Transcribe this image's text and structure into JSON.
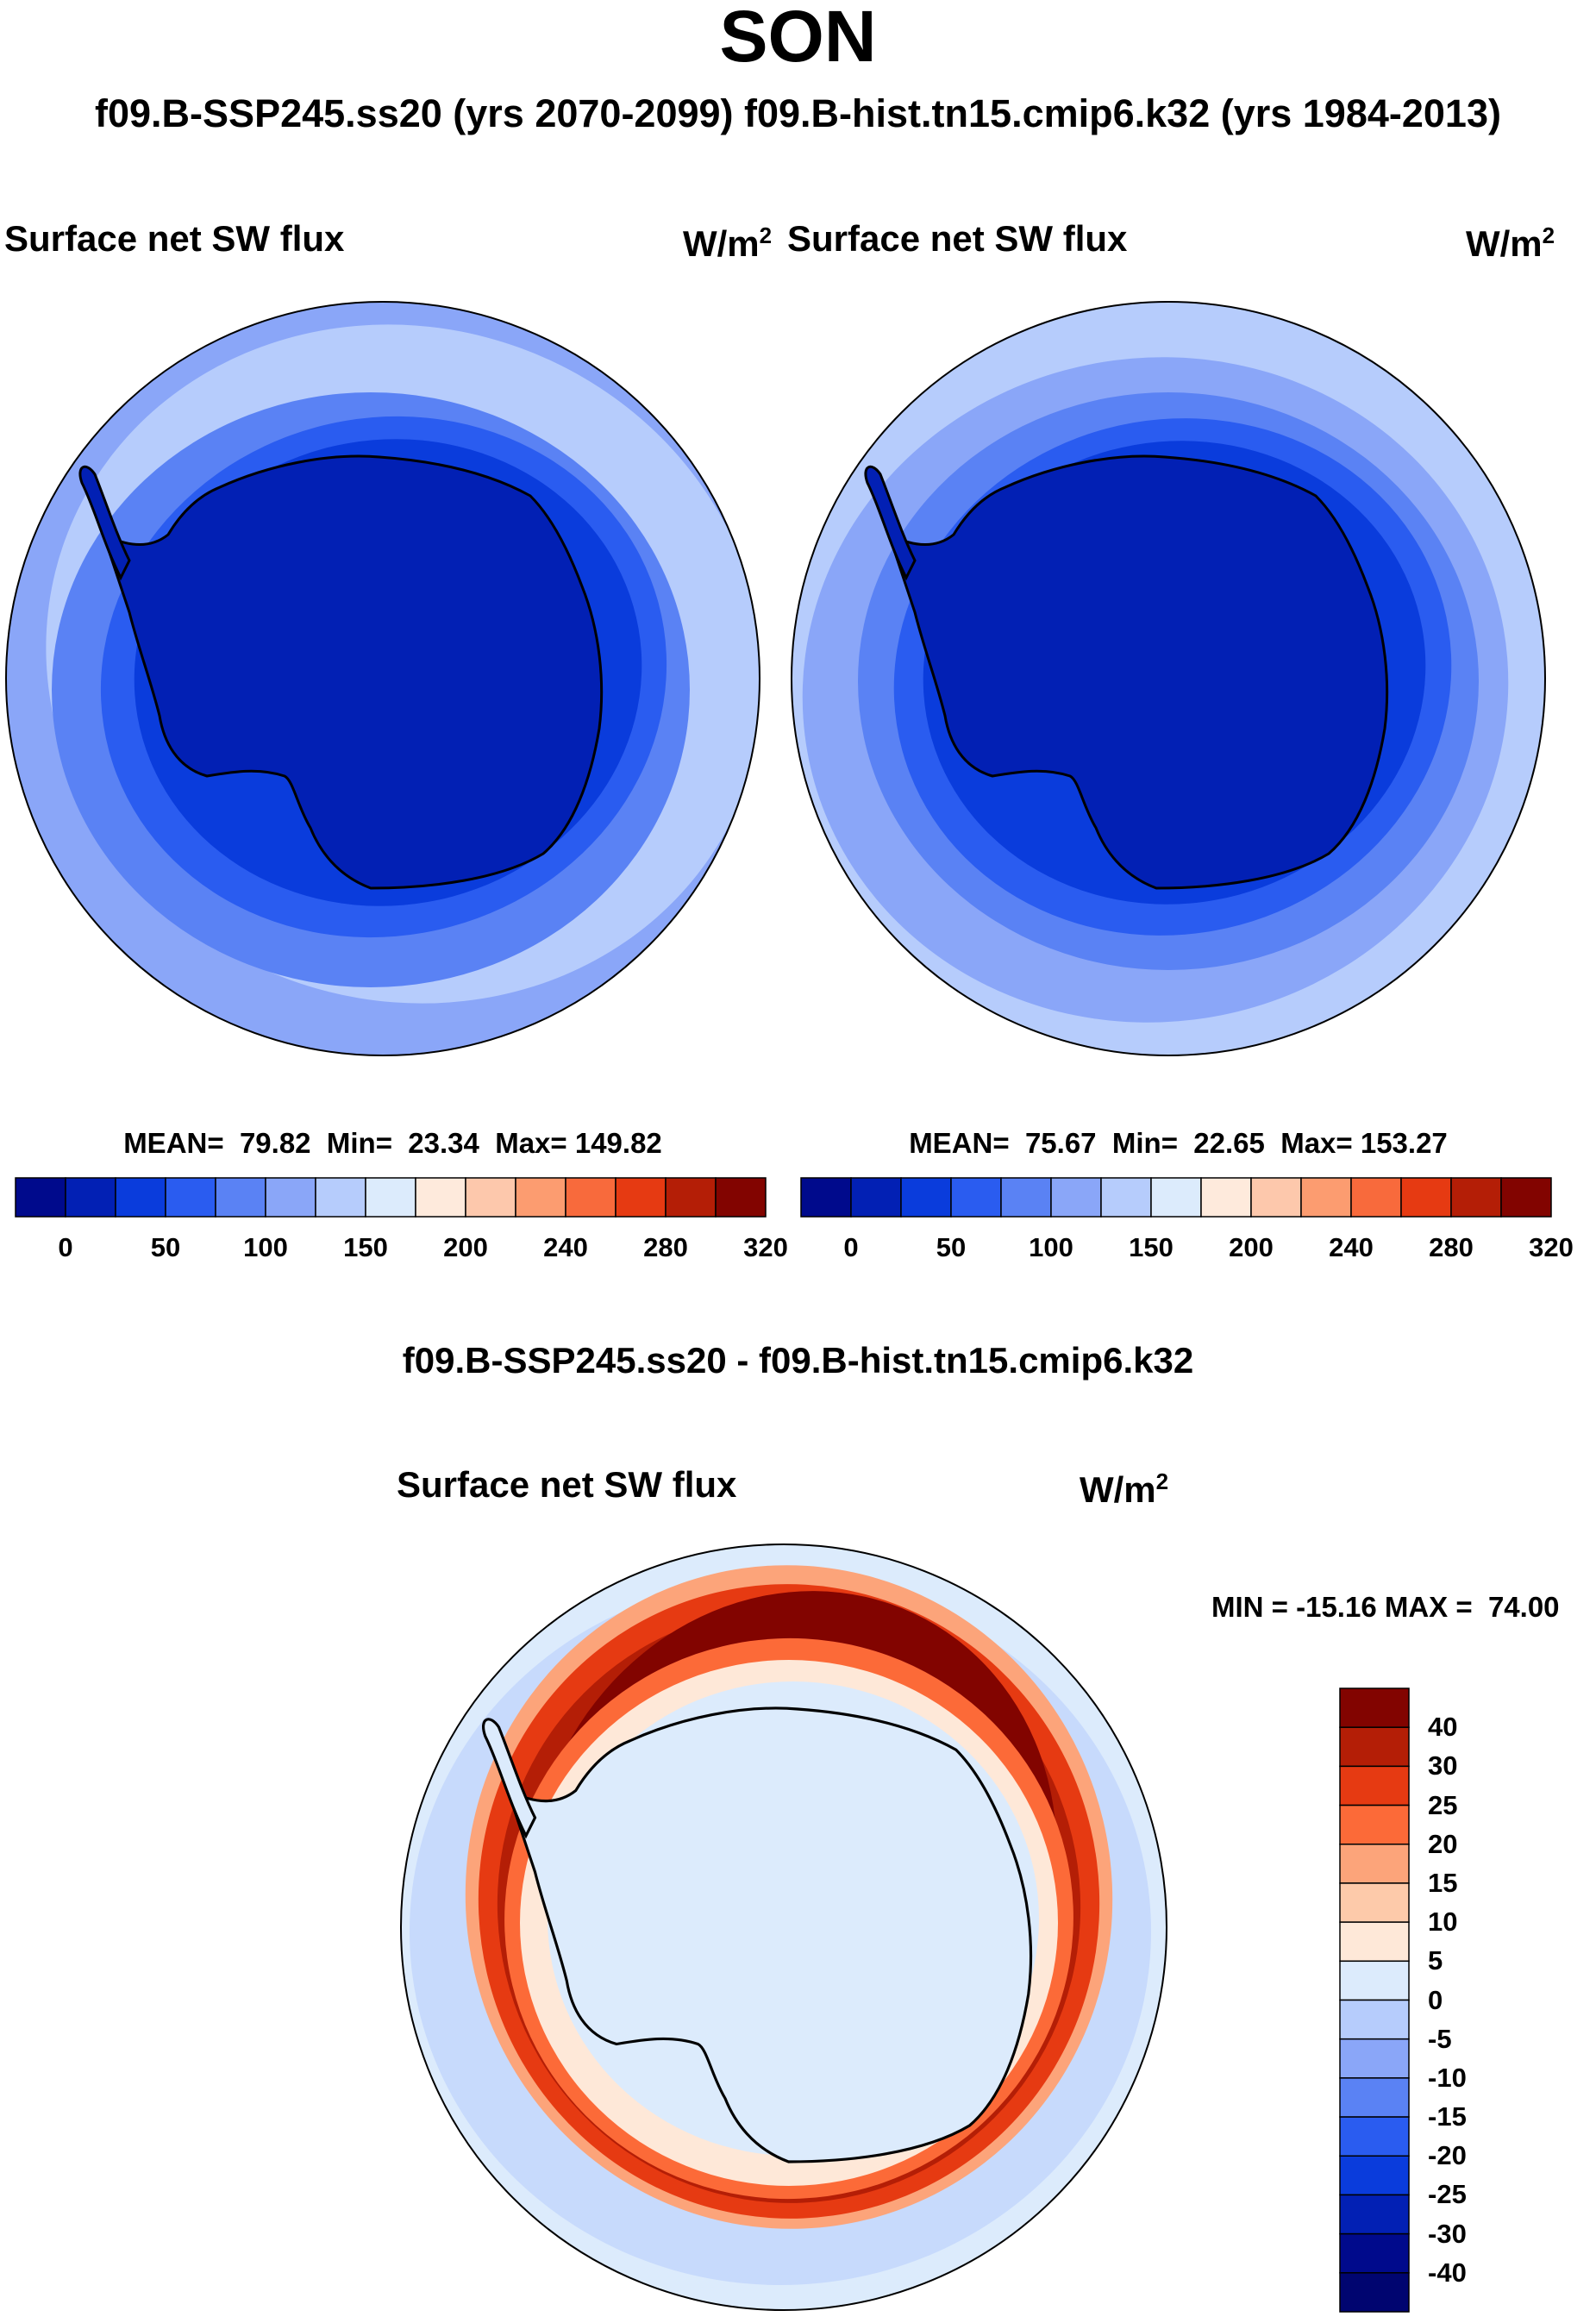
{
  "header": {
    "season": "SON",
    "subtitle": "f09.B-SSP245.ss20 (yrs 2070-2099)  f09.B-hist.tn15.cmip6.k32 (yrs 1984-2013)"
  },
  "panels": [
    {
      "variable": "Surface net SW flux",
      "units_base": "W/m",
      "units_exp": "2",
      "stats": "MEAN=  79.82  Min=  23.34  Max= 149.82"
    },
    {
      "variable": "Surface net SW flux",
      "units_base": "W/m",
      "units_exp": "2",
      "stats": "MEAN=  75.67  Min=  22.65  Max= 153.27"
    }
  ],
  "diff": {
    "title": "f09.B-SSP245.ss20 - f09.B-hist.tn15.cmip6.k32",
    "variable": "Surface net SW flux",
    "units_base": "W/m",
    "units_exp": "2",
    "minmax": "MIN = -15.16 MAX =  74.00"
  },
  "chart_data": [
    {
      "type": "polar-contour-map",
      "title": "Surface net SW flux (f09.B-SSP245.ss20, yrs 2070-2099)",
      "units": "W/m2",
      "mean": 79.82,
      "min": 23.34,
      "max": 149.82,
      "colorbar": {
        "tick_labels": [
          "0",
          "50",
          "100",
          "150",
          "200",
          "240",
          "280",
          "320"
        ],
        "colors": [
          "#000a8c",
          "#0220b4",
          "#0a3cdc",
          "#2a5cf0",
          "#5a82f4",
          "#8aa6f8",
          "#b6ccfc",
          "#dcebfc",
          "#feeadc",
          "#fdc8ac",
          "#fc9c70",
          "#f86a3c",
          "#e63a12",
          "#b41e06",
          "#820400"
        ]
      }
    },
    {
      "type": "polar-contour-map",
      "title": "Surface net SW flux (f09.B-hist.tn15.cmip6.k32, yrs 1984-2013)",
      "units": "W/m2",
      "mean": 75.67,
      "min": 22.65,
      "max": 153.27,
      "colorbar": {
        "tick_labels": [
          "0",
          "50",
          "100",
          "150",
          "200",
          "240",
          "280",
          "320"
        ],
        "colors": [
          "#000a8c",
          "#0220b4",
          "#0a3cdc",
          "#2a5cf0",
          "#5a82f4",
          "#8aa6f8",
          "#b6ccfc",
          "#dcebfc",
          "#feeadc",
          "#fdc8ac",
          "#fc9c70",
          "#f86a3c",
          "#e63a12",
          "#b41e06",
          "#820400"
        ]
      }
    },
    {
      "type": "polar-contour-map",
      "title": "Surface net SW flux difference",
      "units": "W/m2",
      "min": -15.16,
      "max": 74.0,
      "colorbar": {
        "orientation": "vertical",
        "tick_labels": [
          "40",
          "30",
          "25",
          "20",
          "15",
          "10",
          "5",
          "0",
          "-5",
          "-10",
          "-15",
          "-20",
          "-25",
          "-30",
          "-40"
        ],
        "colors": [
          "#820400",
          "#b41e06",
          "#e63a12",
          "#fc6a38",
          "#fca47a",
          "#fdcaaa",
          "#fee8d8",
          "#dcebfc",
          "#b6ccfc",
          "#8aa6f8",
          "#5a82f4",
          "#2a5cf0",
          "#0a3cdc",
          "#0220b4",
          "#000a8c",
          "#000570"
        ]
      }
    }
  ]
}
